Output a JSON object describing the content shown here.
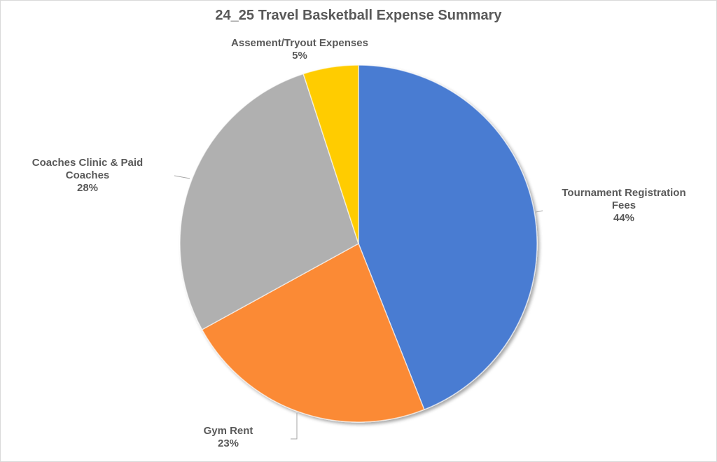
{
  "chart_data": {
    "type": "pie",
    "title": "24_25 Travel Basketball Expense Summary",
    "slices": [
      {
        "label": [
          "Tournament Registration",
          "Fees"
        ],
        "pct_label": "44%",
        "value": 44,
        "color": "#4a7bd2"
      },
      {
        "label": [
          "Gym Rent"
        ],
        "pct_label": "23%",
        "value": 23,
        "color": "#fb8a36"
      },
      {
        "label": [
          "Coaches Clinic & Paid",
          "Coaches"
        ],
        "pct_label": "28%",
        "value": 28,
        "color": "#b0b0b0"
      },
      {
        "label": [
          "Assement/Tryout Expenses"
        ],
        "pct_label": "5%",
        "value": 5,
        "color": "#ffcc00"
      }
    ],
    "legend": "none",
    "start_angle": "12 o'clock",
    "direction": "clockwise"
  }
}
